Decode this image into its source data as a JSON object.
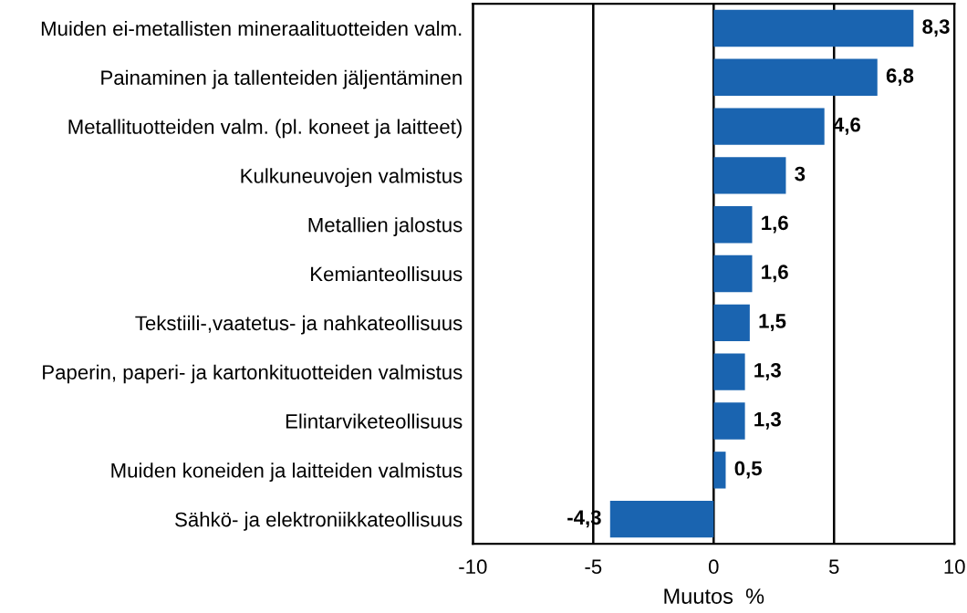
{
  "chart_data": {
    "type": "bar",
    "orientation": "horizontal",
    "xlabel": "Muutos  %",
    "categories": [
      "Muiden ei-metallisten mineraalituotteiden valm.",
      "Painaminen ja tallenteiden jäljentäminen",
      "Metallituotteiden valm. (pl. koneet ja laitteet)",
      "Kulkuneuvojen valmistus",
      "Metallien jalostus",
      "Kemianteollisuus",
      "Tekstiili-,vaatetus- ja nahkateollisuus",
      "Paperin, paperi- ja kartonkituotteiden valmistus",
      "Elintarviketeollisuus",
      "Muiden koneiden ja laitteiden valmistus",
      "Sähkö- ja elektroniikkateollisuus"
    ],
    "values": [
      8.3,
      6.8,
      4.6,
      3,
      1.6,
      1.6,
      1.5,
      1.3,
      1.3,
      0.5,
      -4.3
    ],
    "value_labels": [
      "8,3",
      "6,8",
      "4,6",
      "3",
      "1,6",
      "1,6",
      "1,5",
      "1,3",
      "1,3",
      "0,5",
      "-4,3"
    ],
    "color": "#1a64b0",
    "xlim": [
      -10,
      10
    ],
    "xticks": [
      -10,
      -5,
      0,
      5,
      10
    ],
    "grid": "x",
    "legend": false
  }
}
